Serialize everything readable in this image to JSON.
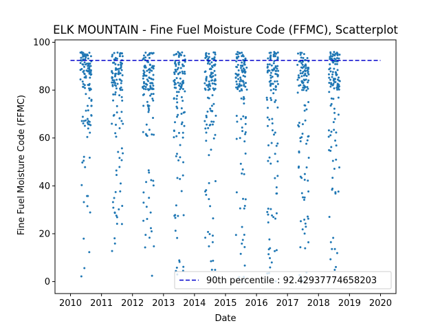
{
  "chart_data": {
    "type": "scatter",
    "title": "ELK MOUNTAIN - Fine Fuel Moisture Code (FFMC), Scatterplot",
    "xlabel": "Date",
    "ylabel": "Fine Fuel Moisture Code (FFMC)",
    "xlim": [
      2009.5,
      2020.5
    ],
    "ylim": [
      -5,
      101
    ],
    "xticks": [
      2010,
      2011,
      2012,
      2013,
      2014,
      2015,
      2016,
      2017,
      2018,
      2019,
      2020
    ],
    "xtick_labels": [
      "2010",
      "2011",
      "2012",
      "2013",
      "2014",
      "2015",
      "2016",
      "2017",
      "2018",
      "2019",
      "2020"
    ],
    "yticks": [
      0,
      20,
      40,
      60,
      80,
      100
    ],
    "ytick_labels": [
      "0",
      "20",
      "40",
      "60",
      "80",
      "100"
    ],
    "point_color": "#1f77b4",
    "seasons": [
      {
        "year": 2010,
        "start": 2010.32,
        "end": 2010.68,
        "count": 120
      },
      {
        "year": 2011,
        "start": 2011.33,
        "end": 2011.69,
        "count": 120
      },
      {
        "year": 2012,
        "start": 2012.33,
        "end": 2012.7,
        "count": 120
      },
      {
        "year": 2013,
        "start": 2013.33,
        "end": 2013.7,
        "count": 120
      },
      {
        "year": 2014,
        "start": 2014.33,
        "end": 2014.69,
        "count": 120
      },
      {
        "year": 2015,
        "start": 2015.33,
        "end": 2015.69,
        "count": 120
      },
      {
        "year": 2016,
        "start": 2016.33,
        "end": 2016.7,
        "count": 120
      },
      {
        "year": 2017,
        "start": 2017.32,
        "end": 2017.69,
        "count": 120
      },
      {
        "year": 2018,
        "start": 2018.33,
        "end": 2018.69,
        "count": 120
      }
    ],
    "reference_line": {
      "value": 92.42937774658203,
      "label": "90th percentile : 92.42937774658203",
      "color": "#0000cc",
      "style": "dashed"
    },
    "legend_position": "lower-right"
  }
}
